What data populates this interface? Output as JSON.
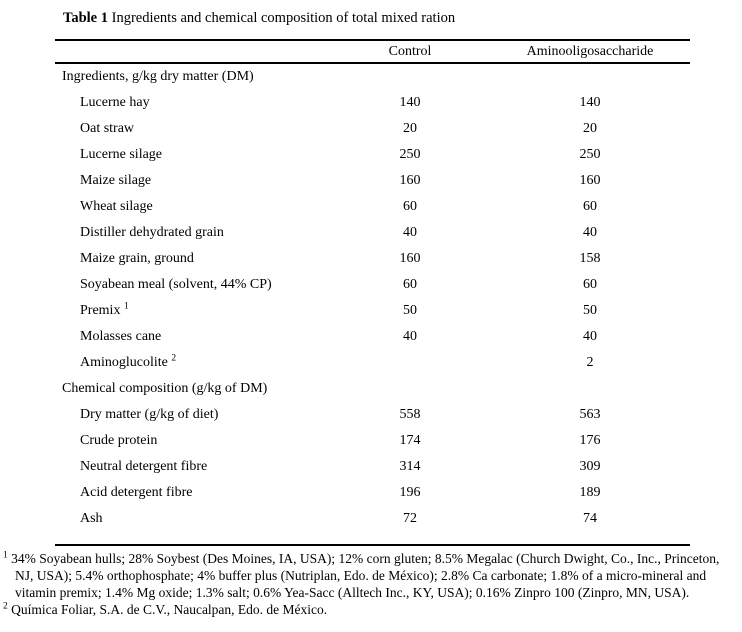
{
  "title": {
    "label": "Table 1",
    "caption": "Ingredients and chemical composition of total mixed ration"
  },
  "table": {
    "columns": [
      "Control",
      "Aminooligosaccharide"
    ],
    "sections": [
      {
        "header": "Ingredients, g/kg dry matter (DM)",
        "rows": [
          {
            "label": "Lucerne hay",
            "sup": "",
            "control": "140",
            "amino": "140"
          },
          {
            "label": "Oat straw",
            "sup": "",
            "control": "20",
            "amino": "20"
          },
          {
            "label": "Lucerne silage",
            "sup": "",
            "control": "250",
            "amino": "250"
          },
          {
            "label": "Maize silage",
            "sup": "",
            "control": "160",
            "amino": "160"
          },
          {
            "label": "Wheat silage",
            "sup": "",
            "control": "60",
            "amino": "60"
          },
          {
            "label": "Distiller dehydrated grain",
            "sup": "",
            "control": "40",
            "amino": "40"
          },
          {
            "label": "Maize grain, ground",
            "sup": "",
            "control": "160",
            "amino": "158"
          },
          {
            "label": "Soyabean meal (solvent, 44% CP)",
            "sup": "",
            "control": "60",
            "amino": "60"
          },
          {
            "label": "Premix",
            "sup": "1",
            "control": "50",
            "amino": "50"
          },
          {
            "label": "Molasses cane",
            "sup": "",
            "control": "40",
            "amino": "40"
          },
          {
            "label": "Aminoglucolite",
            "sup": "2",
            "control": "",
            "amino": "2"
          }
        ]
      },
      {
        "header": "Chemical composition (g/kg of DM)",
        "rows": [
          {
            "label": "Dry matter (g/kg of diet)",
            "sup": "",
            "control": "558",
            "amino": "563"
          },
          {
            "label": "Crude protein",
            "sup": "",
            "control": "174",
            "amino": "176"
          },
          {
            "label": "Neutral detergent fibre",
            "sup": "",
            "control": "314",
            "amino": "309"
          },
          {
            "label": "Acid detergent fibre",
            "sup": "",
            "control": "196",
            "amino": "189"
          },
          {
            "label": "Ash",
            "sup": "",
            "control": "72",
            "amino": "74"
          }
        ]
      }
    ]
  },
  "footnotes": [
    {
      "marker": "1",
      "text": "34% Soyabean hulls; 28% Soybest (Des Moines, IA, USA); 12% corn gluten; 8.5% Megalac (Church Dwight, Co., Inc., Princeton, NJ, USA); 5.4% orthophosphate; 4% buffer plus (Nutriplan, Edo. de México); 2.8% Ca carbonate; 1.8% of a micro-mineral and vitamin premix; 1.4% Mg oxide; 1.3% salt; 0.6% Yea-Sacc (Alltech Inc., KY, USA); 0.16% Zinpro 100 (Zinpro, MN, USA)."
    },
    {
      "marker": "2",
      "text": "Química Foliar, S.A. de C.V., Naucalpan, Edo. de México."
    }
  ]
}
